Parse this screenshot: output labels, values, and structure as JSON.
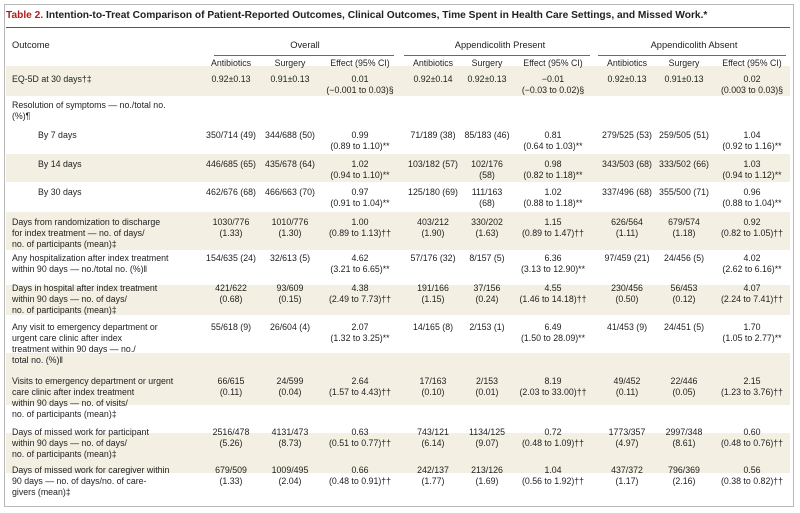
{
  "table": {
    "number": "Table 2.",
    "title": "Intention-to-Treat Comparison of Patient-Reported Outcomes, Clinical Outcomes, Time Spent in Health Care Settings, and Missed Work.*",
    "outcome_header": "Outcome",
    "groups": [
      "Overall",
      "Appendicolith Present",
      "Appendicolith Absent"
    ],
    "subheaders": [
      "Antibiotics",
      "Surgery",
      "Effect (95% CI)",
      "Antibiotics",
      "Surgery",
      "Effect (95% CI)",
      "Antibiotics",
      "Surgery",
      "Effect (95% CI)"
    ],
    "rows": [
      {
        "label": [
          "EQ-5D at 30 days†‡"
        ],
        "cells": [
          [
            "0.92±0.13"
          ],
          [
            "0.91±0.13"
          ],
          [
            "0.01",
            "(−0.001 to 0.03)§"
          ],
          [
            "0.92±0.14"
          ],
          [
            "0.92±0.13"
          ],
          [
            "−0.01",
            "(−0.03 to 0.02)§"
          ],
          [
            "0.92±0.13"
          ],
          [
            "0.91±0.13"
          ],
          [
            "0.02",
            "(0.003 to 0.03)§"
          ]
        ]
      },
      {
        "label": [
          "Resolution of symptoms — no./total no.",
          "(%)¶"
        ],
        "cells": []
      },
      {
        "label": [
          "By 7 days"
        ],
        "indent": true,
        "cells": [
          [
            "350/714 (49)"
          ],
          [
            "344/688 (50)"
          ],
          [
            "0.99",
            "(0.89 to 1.10)**"
          ],
          [
            "71/189 (38)"
          ],
          [
            "85/183 (46)"
          ],
          [
            "0.81",
            "(0.64 to 1.03)**"
          ],
          [
            "279/525 (53)"
          ],
          [
            "259/505 (51)"
          ],
          [
            "1.04",
            "(0.92 to 1.16)**"
          ]
        ]
      },
      {
        "label": [
          "By 14 days"
        ],
        "indent": true,
        "cells": [
          [
            "446/685 (65)"
          ],
          [
            "435/678 (64)"
          ],
          [
            "1.02",
            "(0.94 to 1.10)**"
          ],
          [
            "103/182 (57)"
          ],
          [
            "102/176",
            "(58)"
          ],
          [
            "0.98",
            "(0.82 to 1.18)**"
          ],
          [
            "343/503 (68)"
          ],
          [
            "333/502 (66)"
          ],
          [
            "1.03",
            "(0.94 to 1.12)**"
          ]
        ]
      },
      {
        "label": [
          "By 30 days"
        ],
        "indent": true,
        "cells": [
          [
            "462/676 (68)"
          ],
          [
            "466/663 (70)"
          ],
          [
            "0.97",
            "(0.91 to 1.04)**"
          ],
          [
            "125/180 (69)"
          ],
          [
            "111/163",
            "(68)"
          ],
          [
            "1.02",
            "(0.88 to 1.18)**"
          ],
          [
            "337/496 (68)"
          ],
          [
            "355/500 (71)"
          ],
          [
            "0.96",
            "(0.88 to 1.04)**"
          ]
        ]
      },
      {
        "label": [
          "Days from randomization to discharge",
          "for index treatment — no. of days/",
          "no. of participants (mean)‡"
        ],
        "cells": [
          [
            "1030/776",
            "(1.33)"
          ],
          [
            "1010/776",
            "(1.30)"
          ],
          [
            "1.00",
            "(0.89 to 1.13)††"
          ],
          [
            "403/212",
            "(1.90)"
          ],
          [
            "330/202",
            "(1.63)"
          ],
          [
            "1.15",
            "(0.89 to 1.47)††"
          ],
          [
            "626/564",
            "(1.11)"
          ],
          [
            "679/574",
            "(1.18)"
          ],
          [
            "0.92",
            "(0.82 to 1.05)††"
          ]
        ]
      },
      {
        "label": [
          "Any hospitalization after index treatment",
          "within 90 days — no./total no. (%)‖"
        ],
        "cells": [
          [
            "154/635 (24)"
          ],
          [
            "32/613 (5)"
          ],
          [
            "4.62",
            "(3.21 to 6.65)**"
          ],
          [
            "57/176 (32)"
          ],
          [
            "8/157 (5)"
          ],
          [
            "6.36",
            "(3.13 to 12.90)**"
          ],
          [
            "97/459 (21)"
          ],
          [
            "24/456 (5)"
          ],
          [
            "4.02",
            "(2.62 to 6.16)**"
          ]
        ]
      },
      {
        "label": [
          "Days in hospital after index treatment",
          "within 90 days — no. of days/",
          "no. of participants (mean)‡"
        ],
        "cells": [
          [
            "421/622",
            "(0.68)"
          ],
          [
            "93/609",
            "(0.15)"
          ],
          [
            "4.38",
            "(2.49 to 7.73)††"
          ],
          [
            "191/166",
            "(1.15)"
          ],
          [
            "37/156",
            "(0.24)"
          ],
          [
            "4.55",
            "(1.46 to 14.18)††"
          ],
          [
            "230/456",
            "(0.50)"
          ],
          [
            "56/453",
            "(0.12)"
          ],
          [
            "4.07",
            "(2.24 to 7.41)††"
          ]
        ]
      },
      {
        "label": [
          "Any visit to emergency department or",
          "urgent care clinic after index",
          "treatment within 90 days — no./",
          "total no. (%)‖"
        ],
        "cells": [
          [
            "55/618 (9)"
          ],
          [
            "26/604 (4)"
          ],
          [
            "2.07",
            "(1.32 to 3.25)**"
          ],
          [
            "14/165 (8)"
          ],
          [
            "2/153 (1)"
          ],
          [
            "6.49",
            "(1.50 to 28.09)**"
          ],
          [
            "41/453 (9)"
          ],
          [
            "24/451 (5)"
          ],
          [
            "1.70",
            "(1.05 to 2.77)**"
          ]
        ]
      },
      {
        "label": [
          "Visits to emergency department or urgent",
          "care clinic after index treatment",
          "within 90 days — no. of visits/",
          "no. of participants (mean)‡"
        ],
        "cells": [
          [
            "66/615",
            "(0.11)"
          ],
          [
            "24/599",
            "(0.04)"
          ],
          [
            "2.64",
            "(1.57 to 4.43)††"
          ],
          [
            "17/163",
            "(0.10)"
          ],
          [
            "2/153",
            "(0.01)"
          ],
          [
            "8.19",
            "(2.03 to 33.00)††"
          ],
          [
            "49/452",
            "(0.11)"
          ],
          [
            "22/446",
            "(0.05)"
          ],
          [
            "2.15",
            "(1.23 to 3.76)††"
          ]
        ]
      },
      {
        "label": [
          "Days of missed work for participant",
          "within 90 days — no. of days/",
          "no. of participants (mean)‡"
        ],
        "cells": [
          [
            "2516/478",
            "(5.26)"
          ],
          [
            "4131/473",
            "(8.73)"
          ],
          [
            "0.63",
            "(0.51 to 0.77)††"
          ],
          [
            "743/121",
            "(6.14)"
          ],
          [
            "1134/125",
            "(9.07)"
          ],
          [
            "0.72",
            "(0.48 to 1.09)††"
          ],
          [
            "1773/357",
            "(4.97)"
          ],
          [
            "2997/348",
            "(8.61)"
          ],
          [
            "0.60",
            "(0.48 to 0.76)††"
          ]
        ]
      },
      {
        "label": [
          "Days of missed work for caregiver within",
          "90 days — no. of days/no. of care-",
          "givers (mean)‡"
        ],
        "cells": [
          [
            "679/509",
            "(1.33)"
          ],
          [
            "1009/495",
            "(2.04)"
          ],
          [
            "0.66",
            "(0.48 to 0.91)††"
          ],
          [
            "242/137",
            "(1.77)"
          ],
          [
            "213/126",
            "(1.69)"
          ],
          [
            "1.04",
            "(0.56 to 1.92)††"
          ],
          [
            "437/372",
            "(1.17)"
          ],
          [
            "796/369",
            "(2.16)"
          ],
          [
            "0.56",
            "(0.38 to 0.82)††"
          ]
        ]
      }
    ]
  }
}
